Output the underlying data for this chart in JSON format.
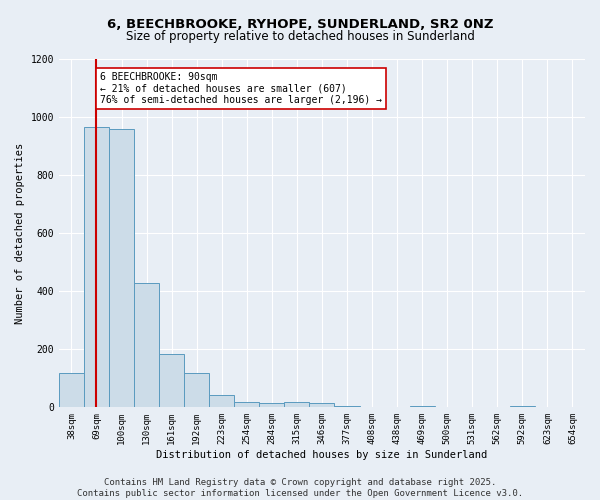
{
  "title_line1": "6, BEECHBROOKE, RYHOPE, SUNDERLAND, SR2 0NZ",
  "title_line2": "Size of property relative to detached houses in Sunderland",
  "xlabel": "Distribution of detached houses by size in Sunderland",
  "ylabel": "Number of detached properties",
  "categories": [
    "38sqm",
    "69sqm",
    "100sqm",
    "130sqm",
    "161sqm",
    "192sqm",
    "223sqm",
    "254sqm",
    "284sqm",
    "315sqm",
    "346sqm",
    "377sqm",
    "408sqm",
    "438sqm",
    "469sqm",
    "500sqm",
    "531sqm",
    "562sqm",
    "592sqm",
    "623sqm",
    "654sqm"
  ],
  "values": [
    120,
    965,
    960,
    430,
    185,
    120,
    42,
    18,
    14,
    18,
    14,
    5,
    0,
    0,
    5,
    0,
    0,
    0,
    5,
    0,
    0
  ],
  "bar_color": "#ccdce8",
  "bar_edge_color": "#5a9abf",
  "bar_width": 1.0,
  "property_bin_index": 1,
  "vline_color": "#cc0000",
  "annotation_text": "6 BEECHBROOKE: 90sqm\n← 21% of detached houses are smaller (607)\n76% of semi-detached houses are larger (2,196) →",
  "annotation_box_color": "#ffffff",
  "annotation_box_edge_color": "#cc0000",
  "ylim": [
    0,
    1200
  ],
  "yticks": [
    0,
    200,
    400,
    600,
    800,
    1000,
    1200
  ],
  "background_color": "#e8eef5",
  "plot_background": "#e8eef5",
  "footer_line1": "Contains HM Land Registry data © Crown copyright and database right 2025.",
  "footer_line2": "Contains public sector information licensed under the Open Government Licence v3.0.",
  "grid_color": "#ffffff",
  "title_fontsize": 9.5,
  "subtitle_fontsize": 8.5,
  "axis_label_fontsize": 7.5,
  "tick_fontsize": 6.5,
  "annotation_fontsize": 7,
  "footer_fontsize": 6.5
}
